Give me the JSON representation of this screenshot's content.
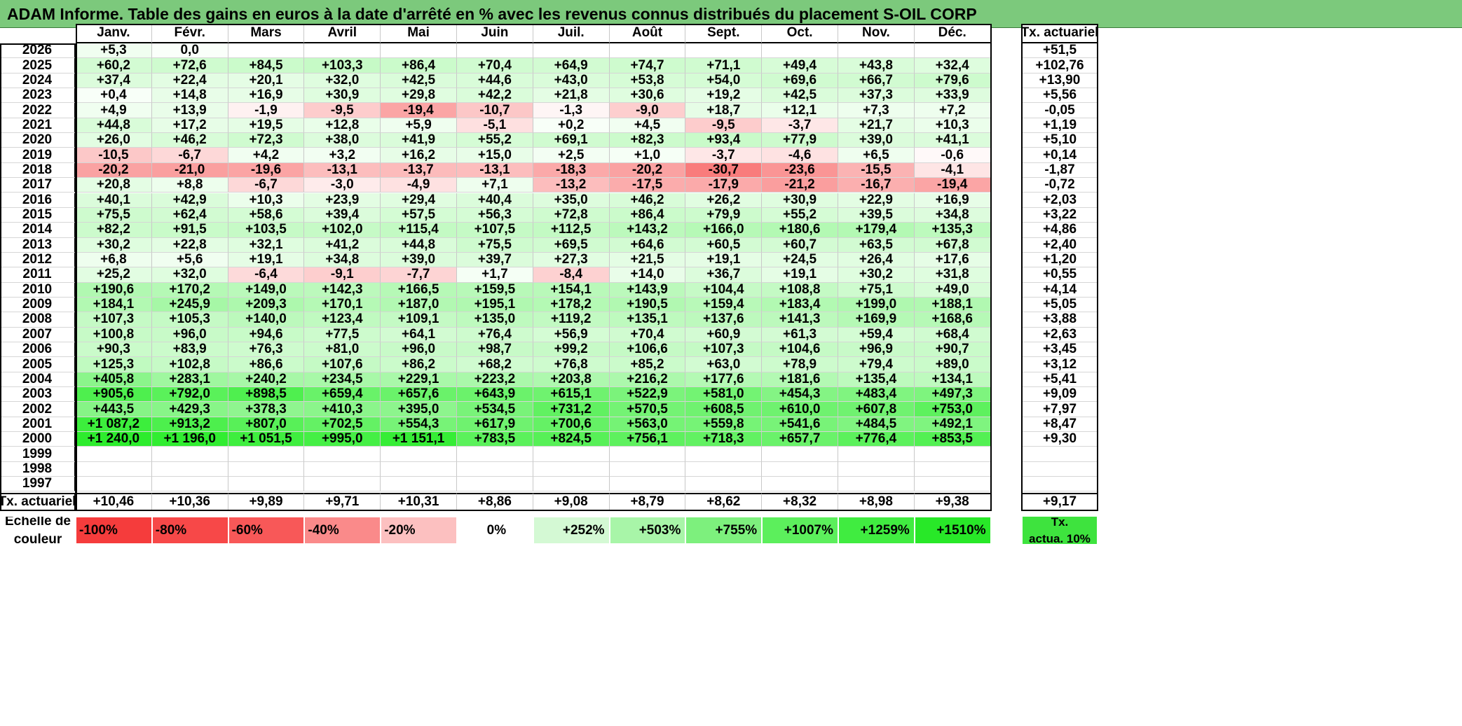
{
  "title": "ADAM Informe. Table des gains en euros à la date d'arrêté en % avec les revenus connus distribués du placement S-OIL CORP",
  "months": [
    "Janv.",
    "Févr.",
    "Mars",
    "Avril",
    "Mai",
    "Juin",
    "Juil.",
    "Août",
    "Sept.",
    "Oct.",
    "Nov.",
    "Déc."
  ],
  "actuarial_header": "Tx. actuariel",
  "rows": [
    {
      "year": "2026",
      "values": [
        "+5,3",
        "0,0",
        "",
        "",
        "",
        "",
        "",
        "",
        "",
        "",
        "",
        ""
      ],
      "actuarial": "+51,5"
    },
    {
      "year": "2025",
      "values": [
        "+60,2",
        "+72,6",
        "+84,5",
        "+103,3",
        "+86,4",
        "+70,4",
        "+64,9",
        "+74,7",
        "+71,1",
        "+49,4",
        "+43,8",
        "+32,4"
      ],
      "actuarial": "+102,76"
    },
    {
      "year": "2024",
      "values": [
        "+37,4",
        "+22,4",
        "+20,1",
        "+32,0",
        "+42,5",
        "+44,6",
        "+43,0",
        "+53,8",
        "+54,0",
        "+69,6",
        "+66,7",
        "+79,6"
      ],
      "actuarial": "+13,90"
    },
    {
      "year": "2023",
      "values": [
        "+0,4",
        "+14,8",
        "+16,9",
        "+30,9",
        "+29,8",
        "+42,2",
        "+21,8",
        "+30,6",
        "+19,2",
        "+42,5",
        "+37,3",
        "+33,9"
      ],
      "actuarial": "+5,56"
    },
    {
      "year": "2022",
      "values": [
        "+4,9",
        "+13,9",
        "-1,9",
        "-9,5",
        "-19,4",
        "-10,7",
        "-1,3",
        "-9,0",
        "+18,7",
        "+12,1",
        "+7,3",
        "+7,2"
      ],
      "actuarial": "-0,05"
    },
    {
      "year": "2021",
      "values": [
        "+44,8",
        "+17,2",
        "+19,5",
        "+12,8",
        "+5,9",
        "-5,1",
        "+0,2",
        "+4,5",
        "-9,5",
        "-3,7",
        "+21,7",
        "+10,3"
      ],
      "actuarial": "+1,19"
    },
    {
      "year": "2020",
      "values": [
        "+26,0",
        "+46,2",
        "+72,3",
        "+38,0",
        "+41,9",
        "+55,2",
        "+69,1",
        "+82,3",
        "+93,4",
        "+77,9",
        "+39,0",
        "+41,1"
      ],
      "actuarial": "+5,10"
    },
    {
      "year": "2019",
      "values": [
        "-10,5",
        "-6,7",
        "+4,2",
        "+3,2",
        "+16,2",
        "+15,0",
        "+2,5",
        "+1,0",
        "-3,7",
        "-4,6",
        "+6,5",
        "-0,6"
      ],
      "actuarial": "+0,14"
    },
    {
      "year": "2018",
      "values": [
        "-20,2",
        "-21,0",
        "-19,6",
        "-13,1",
        "-13,7",
        "-13,1",
        "-18,3",
        "-20,2",
        "-30,7",
        "-23,6",
        "-15,5",
        "-4,1"
      ],
      "actuarial": "-1,87"
    },
    {
      "year": "2017",
      "values": [
        "+20,8",
        "+8,8",
        "-6,7",
        "-3,0",
        "-4,9",
        "+7,1",
        "-13,2",
        "-17,5",
        "-17,9",
        "-21,2",
        "-16,7",
        "-19,4"
      ],
      "actuarial": "-0,72"
    },
    {
      "year": "2016",
      "values": [
        "+40,1",
        "+42,9",
        "+10,3",
        "+23,9",
        "+29,4",
        "+40,4",
        "+35,0",
        "+46,2",
        "+26,2",
        "+30,9",
        "+22,9",
        "+16,9"
      ],
      "actuarial": "+2,03"
    },
    {
      "year": "2015",
      "values": [
        "+75,5",
        "+62,4",
        "+58,6",
        "+39,4",
        "+57,5",
        "+56,3",
        "+72,8",
        "+86,4",
        "+79,9",
        "+55,2",
        "+39,5",
        "+34,8"
      ],
      "actuarial": "+3,22"
    },
    {
      "year": "2014",
      "values": [
        "+82,2",
        "+91,5",
        "+103,5",
        "+102,0",
        "+115,4",
        "+107,5",
        "+112,5",
        "+143,2",
        "+166,0",
        "+180,6",
        "+179,4",
        "+135,3"
      ],
      "actuarial": "+4,86"
    },
    {
      "year": "2013",
      "values": [
        "+30,2",
        "+22,8",
        "+32,1",
        "+41,2",
        "+44,8",
        "+75,5",
        "+69,5",
        "+64,6",
        "+60,5",
        "+60,7",
        "+63,5",
        "+67,8"
      ],
      "actuarial": "+2,40"
    },
    {
      "year": "2012",
      "values": [
        "+6,8",
        "+5,6",
        "+19,1",
        "+34,8",
        "+39,0",
        "+39,7",
        "+27,3",
        "+21,5",
        "+19,1",
        "+24,5",
        "+26,4",
        "+17,6"
      ],
      "actuarial": "+1,20"
    },
    {
      "year": "2011",
      "values": [
        "+25,2",
        "+32,0",
        "-6,4",
        "-9,1",
        "-7,7",
        "+1,7",
        "-8,4",
        "+14,0",
        "+36,7",
        "+19,1",
        "+30,2",
        "+31,8"
      ],
      "actuarial": "+0,55"
    },
    {
      "year": "2010",
      "values": [
        "+190,6",
        "+170,2",
        "+149,0",
        "+142,3",
        "+166,5",
        "+159,5",
        "+154,1",
        "+143,9",
        "+104,4",
        "+108,8",
        "+75,1",
        "+49,0"
      ],
      "actuarial": "+4,14"
    },
    {
      "year": "2009",
      "values": [
        "+184,1",
        "+245,9",
        "+209,3",
        "+170,1",
        "+187,0",
        "+195,1",
        "+178,2",
        "+190,5",
        "+159,4",
        "+183,4",
        "+199,0",
        "+188,1"
      ],
      "actuarial": "+5,05"
    },
    {
      "year": "2008",
      "values": [
        "+107,3",
        "+105,3",
        "+140,0",
        "+123,4",
        "+109,1",
        "+135,0",
        "+119,2",
        "+135,1",
        "+137,6",
        "+141,3",
        "+169,9",
        "+168,6"
      ],
      "actuarial": "+3,88"
    },
    {
      "year": "2007",
      "values": [
        "+100,8",
        "+96,0",
        "+94,6",
        "+77,5",
        "+64,1",
        "+76,4",
        "+56,9",
        "+70,4",
        "+60,9",
        "+61,3",
        "+59,4",
        "+68,4"
      ],
      "actuarial": "+2,63"
    },
    {
      "year": "2006",
      "values": [
        "+90,3",
        "+83,9",
        "+76,3",
        "+81,0",
        "+96,0",
        "+98,7",
        "+99,2",
        "+106,6",
        "+107,3",
        "+104,6",
        "+96,9",
        "+90,7"
      ],
      "actuarial": "+3,45"
    },
    {
      "year": "2005",
      "values": [
        "+125,3",
        "+102,8",
        "+86,6",
        "+107,6",
        "+86,2",
        "+68,2",
        "+76,8",
        "+85,2",
        "+63,0",
        "+78,9",
        "+79,4",
        "+89,0"
      ],
      "actuarial": "+3,12"
    },
    {
      "year": "2004",
      "values": [
        "+405,8",
        "+283,1",
        "+240,2",
        "+234,5",
        "+229,1",
        "+223,2",
        "+203,8",
        "+216,2",
        "+177,6",
        "+181,6",
        "+135,4",
        "+134,1"
      ],
      "actuarial": "+5,41"
    },
    {
      "year": "2003",
      "values": [
        "+905,6",
        "+792,0",
        "+898,5",
        "+659,4",
        "+657,6",
        "+643,9",
        "+615,1",
        "+522,9",
        "+581,0",
        "+454,3",
        "+483,4",
        "+497,3"
      ],
      "actuarial": "+9,09"
    },
    {
      "year": "2002",
      "values": [
        "+443,5",
        "+429,3",
        "+378,3",
        "+410,3",
        "+395,0",
        "+534,5",
        "+731,2",
        "+570,5",
        "+608,5",
        "+610,0",
        "+607,8",
        "+753,0"
      ],
      "actuarial": "+7,97"
    },
    {
      "year": "2001",
      "values": [
        "+1 087,2",
        "+913,2",
        "+807,0",
        "+702,5",
        "+554,3",
        "+617,9",
        "+700,6",
        "+563,0",
        "+559,8",
        "+541,6",
        "+484,5",
        "+492,1"
      ],
      "actuarial": "+8,47"
    },
    {
      "year": "2000",
      "values": [
        "+1 240,0",
        "+1 196,0",
        "+1 051,5",
        "+995,0",
        "+1 151,1",
        "+783,5",
        "+824,5",
        "+756,1",
        "+718,3",
        "+657,7",
        "+776,4",
        "+853,5"
      ],
      "actuarial": "+9,30"
    },
    {
      "year": "1999",
      "values": [
        "",
        "",
        "",
        "",
        "",
        "",
        "",
        "",
        "",
        "",
        "",
        ""
      ],
      "actuarial": ""
    },
    {
      "year": "1998",
      "values": [
        "",
        "",
        "",
        "",
        "",
        "",
        "",
        "",
        "",
        "",
        "",
        ""
      ],
      "actuarial": ""
    },
    {
      "year": "1997",
      "values": [
        "",
        "",
        "",
        "",
        "",
        "",
        "",
        "",
        "",
        "",
        "",
        ""
      ],
      "actuarial": ""
    }
  ],
  "totals": {
    "label": "Tx. actuariel",
    "values": [
      "+10,46",
      "+10,36",
      "+9,89",
      "+9,71",
      "+10,31",
      "+8,86",
      "+9,08",
      "+8,79",
      "+8,62",
      "+8,32",
      "+8,98",
      "+9,38"
    ],
    "actuarial": "+9,17"
  },
  "scale": {
    "label_line1": "Echelle de",
    "label_line2": "couleur",
    "steps": [
      {
        "label": "-100%",
        "color": "#f53c3c"
      },
      {
        "label": "-80%",
        "color": "#f74848"
      },
      {
        "label": "-60%",
        "color": "#f85858"
      },
      {
        "label": "-40%",
        "color": "#fa8a8a"
      },
      {
        "label": "-20%",
        "color": "#fcc0c0"
      },
      {
        "label": "0%",
        "color": "#ffffff"
      },
      {
        "label": "+252%",
        "color": "#d4f9d4"
      },
      {
        "label": "+503%",
        "color": "#a8f5a8"
      },
      {
        "label": "+755%",
        "color": "#7df07d"
      },
      {
        "label": "+1007%",
        "color": "#5cef5c"
      },
      {
        "label": "+1259%",
        "color": "#40ec40"
      },
      {
        "label": "+1510%",
        "color": "#28e828"
      }
    ],
    "actuarial_line1": "Tx.",
    "actuarial_line2": "actua. 10%",
    "actuarial_color": "#3ee33e"
  }
}
